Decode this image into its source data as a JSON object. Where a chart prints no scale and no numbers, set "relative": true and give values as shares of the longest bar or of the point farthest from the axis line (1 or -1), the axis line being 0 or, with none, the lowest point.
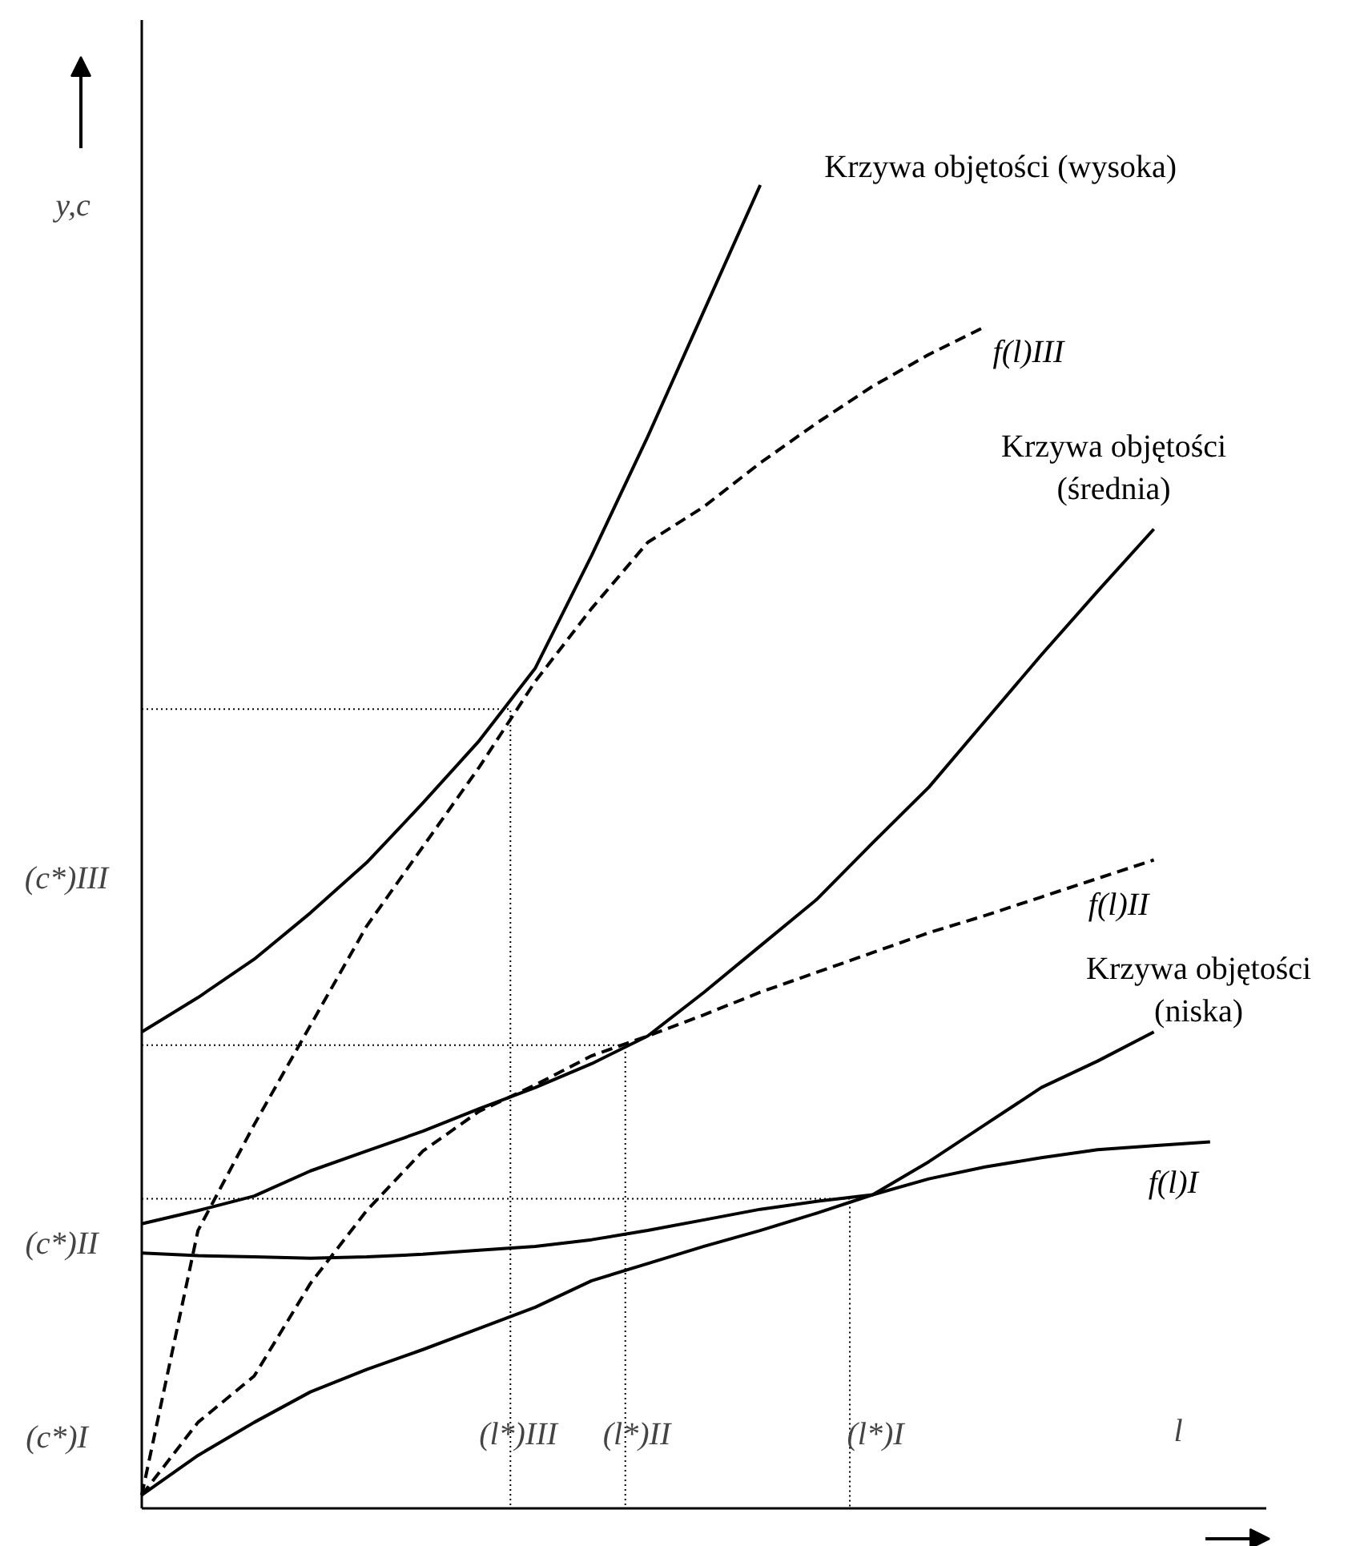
{
  "chart_data": {
    "type": "line",
    "relative": true,
    "ylabel": "y,c",
    "xlabel": "l",
    "marker": "none",
    "categories": [
      null,
      null,
      null,
      null,
      null,
      null,
      null,
      null,
      null,
      null,
      null,
      null,
      null,
      null,
      null,
      null,
      null,
      null,
      null,
      null,
      null
    ],
    "series": [
      {
        "name": "Krzywa objętości (wysoka)",
        "color": "#000000",
        "line_style": "solid",
        "values": [
          0.36,
          0.386,
          0.415,
          0.45,
          0.488,
          0.533,
          0.58,
          0.635,
          0.72,
          0.81,
          0.905,
          1.0,
          null,
          null,
          null,
          null,
          null,
          null,
          null,
          null,
          null
        ]
      },
      {
        "name": "f(l)III",
        "color": "#000000",
        "line_style": "dashed",
        "values": [
          0.01,
          0.21,
          0.29,
          0.365,
          0.44,
          0.5,
          0.56,
          0.625,
          0.68,
          0.73,
          0.757,
          0.79,
          0.82,
          0.848,
          0.872,
          0.893,
          null,
          null,
          null,
          null,
          null
        ]
      },
      {
        "name": "Krzywa objętości\n(średnia)",
        "color": "#000000",
        "line_style": "solid",
        "values": [
          0.215,
          0.225,
          0.236,
          0.255,
          0.27,
          0.285,
          0.302,
          0.318,
          0.336,
          0.357,
          0.39,
          0.425,
          0.46,
          0.503,
          0.545,
          0.595,
          0.645,
          0.693,
          0.74,
          null,
          null
        ]
      },
      {
        "name": "f(l)II",
        "color": "#000000",
        "line_style": "dashed",
        "values": [
          0.01,
          0.065,
          0.1,
          0.17,
          0.225,
          0.27,
          0.3,
          0.32,
          0.342,
          0.357,
          0.373,
          0.39,
          0.405,
          0.42,
          0.435,
          0.448,
          0.462,
          0.476,
          0.49,
          null,
          null
        ]
      },
      {
        "name": "Krzywa objętości\n(niska)",
        "color": "#000000",
        "line_style": "solid",
        "values": [
          0.01,
          0.04,
          0.065,
          0.088,
          0.105,
          0.12,
          0.136,
          0.152,
          0.172,
          0.185,
          0.198,
          0.21,
          0.223,
          0.237,
          0.262,
          0.29,
          0.318,
          0.338,
          0.36,
          null,
          null
        ]
      },
      {
        "name": "f(l)I",
        "color": "#000000",
        "line_style": "solid",
        "values": [
          0.193,
          0.191,
          0.19,
          0.189,
          0.19,
          0.192,
          0.195,
          0.198,
          0.203,
          0.21,
          0.218,
          0.226,
          0.232,
          0.237,
          0.249,
          0.258,
          0.265,
          0.271,
          0.274,
          0.277,
          null
        ]
      }
    ],
    "ref_lines": [
      {
        "axis": "y",
        "value": 0.604,
        "line_style": "dotted",
        "color": "#000000"
      },
      {
        "axis": "y",
        "value": 0.35,
        "line_style": "dotted",
        "color": "#000000"
      },
      {
        "axis": "y",
        "value": 0.234,
        "line_style": "dotted",
        "color": "#000000"
      }
    ],
    "annotations": [
      "(l*)III",
      "(l*)II",
      "(l*)I",
      "(c*)III",
      "(c*)II",
      "(c*)I"
    ]
  }
}
